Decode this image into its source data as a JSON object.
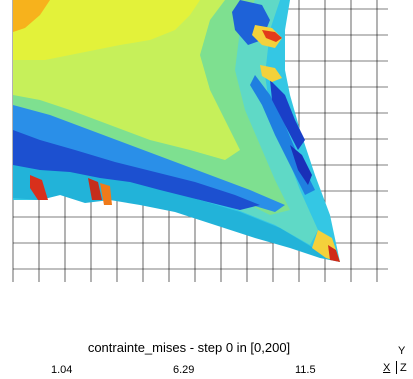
{
  "legend": {
    "title": "contrainte_mises - step 0 in [0,200]",
    "ticks": [
      "1.04",
      "6.29",
      "11.5"
    ]
  },
  "axes": {
    "x": "X",
    "y": "Y",
    "z": "Z"
  },
  "colors": {
    "grid": "#000000",
    "background": "#ffffff"
  }
}
